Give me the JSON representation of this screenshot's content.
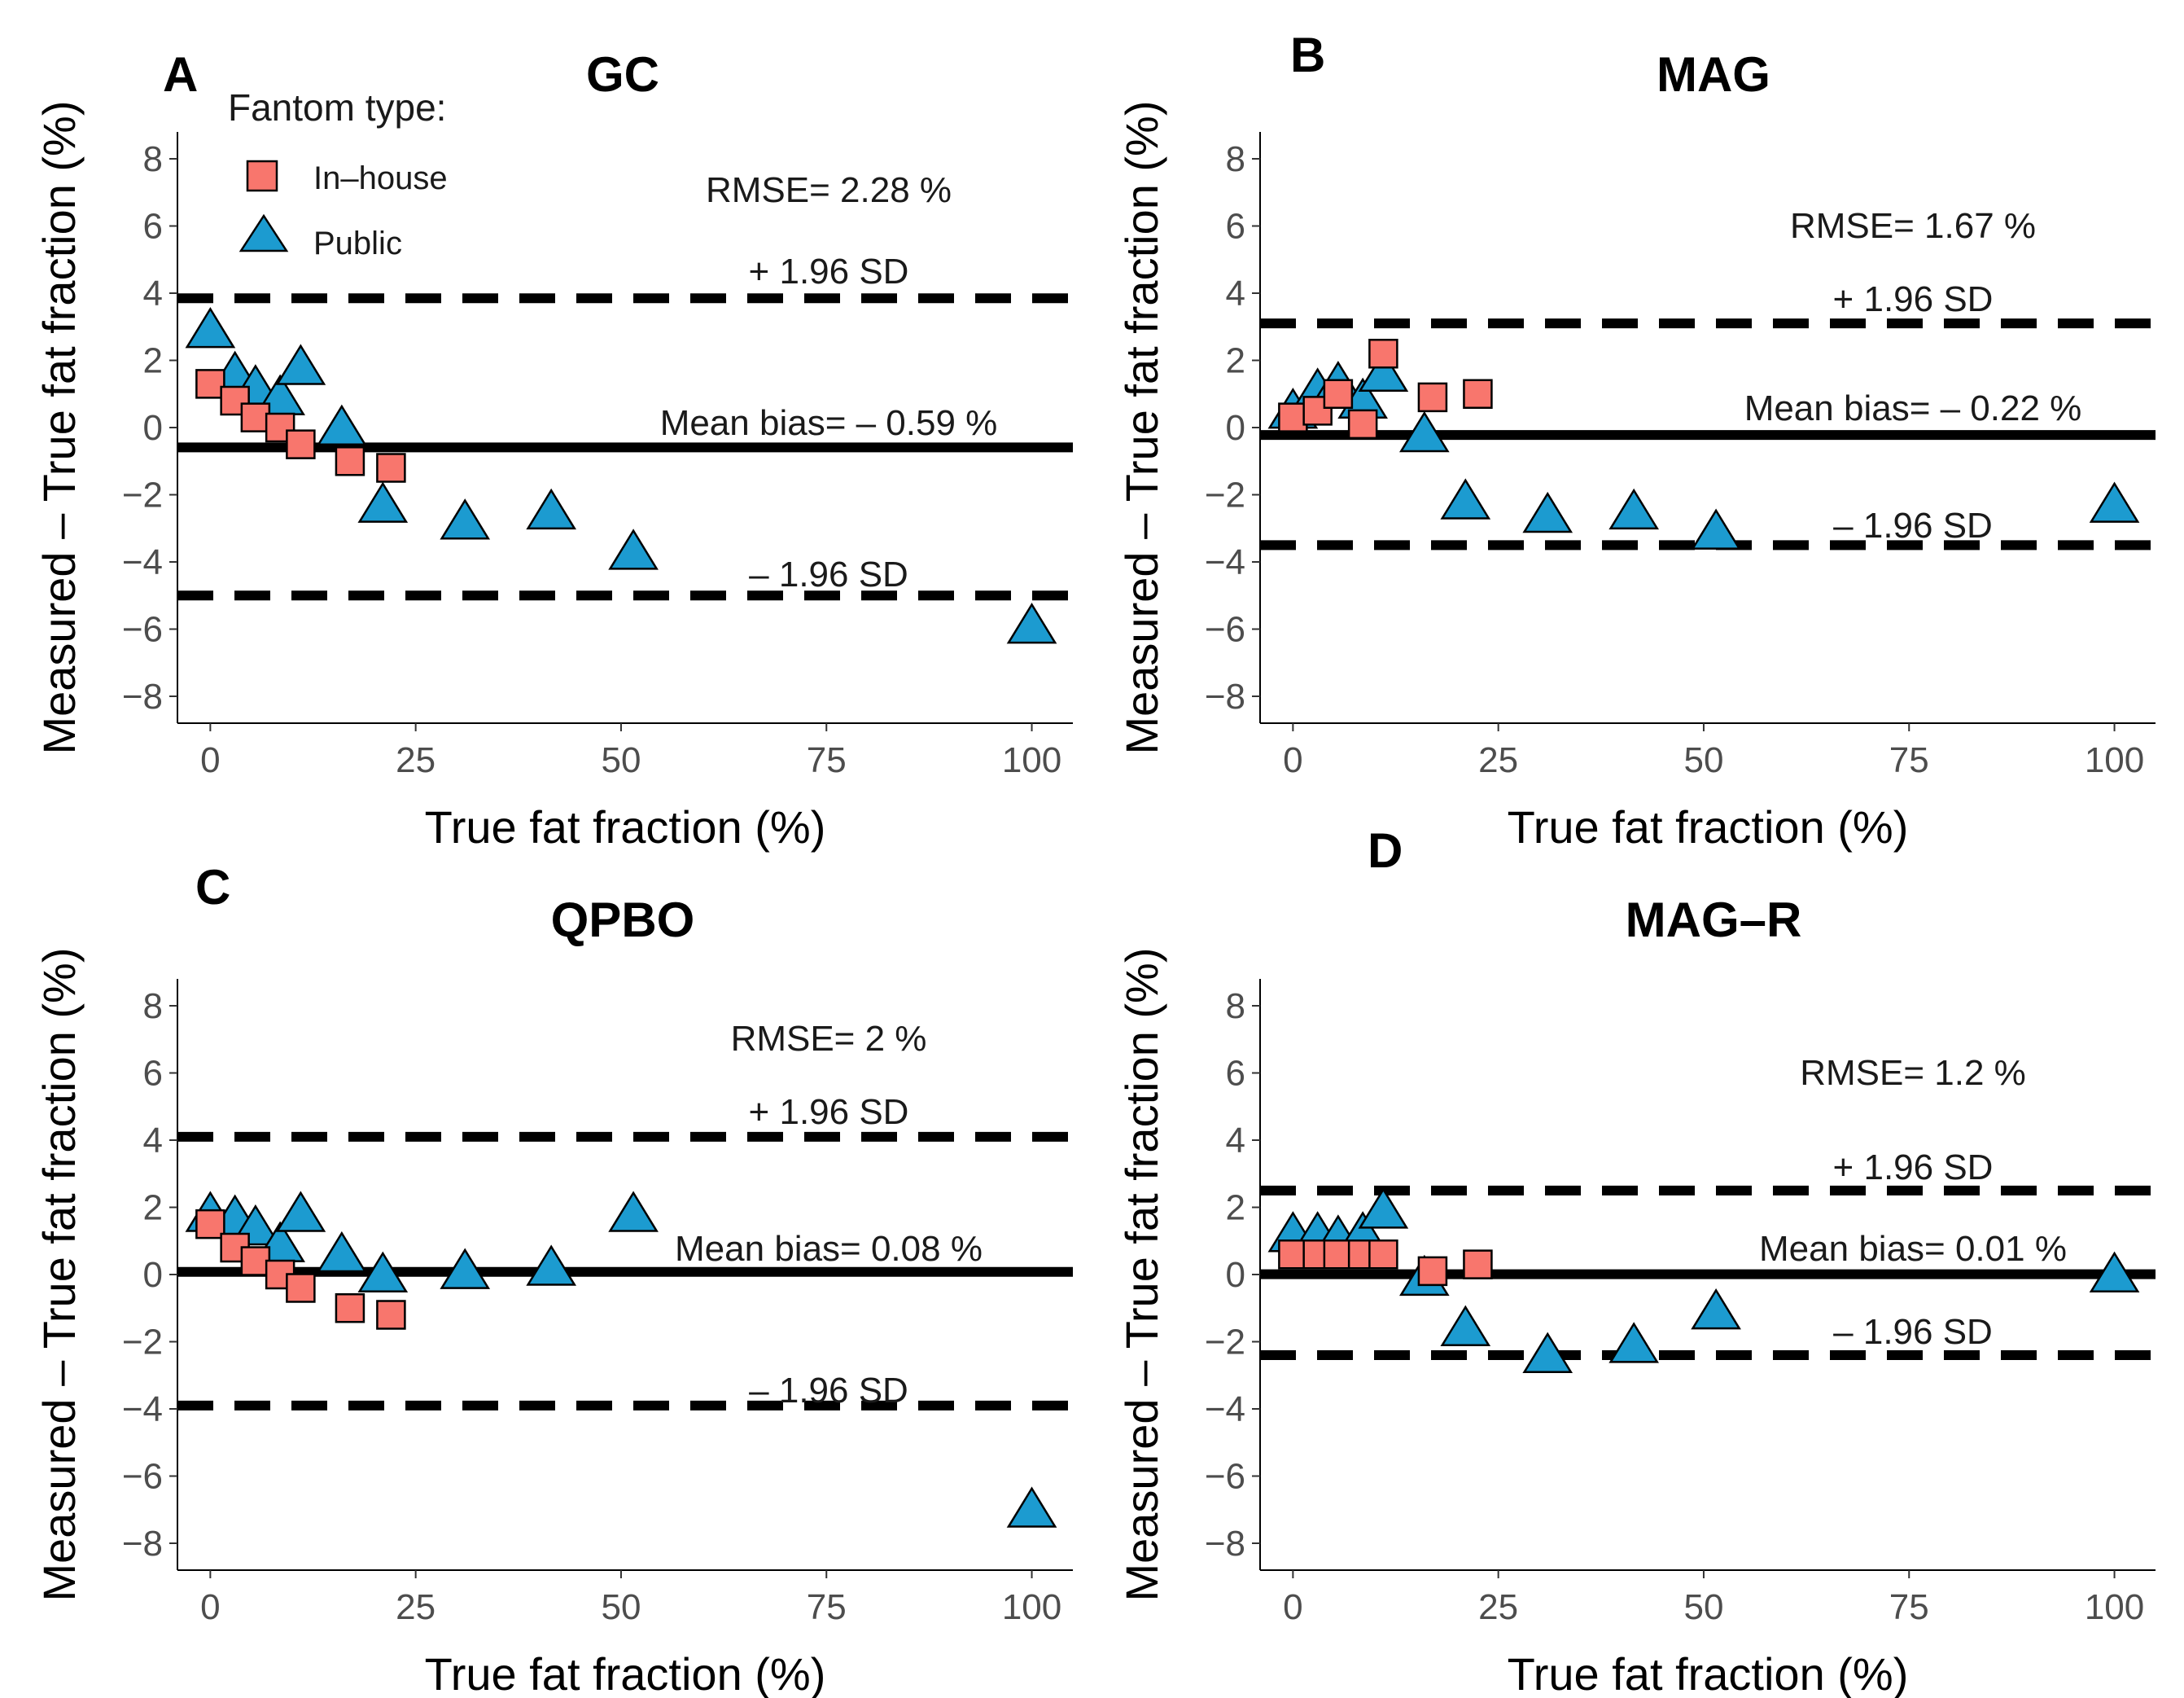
{
  "figure": {
    "legend": {
      "title": "Fantom type:",
      "entries": [
        {
          "label": "In–house",
          "shape": "square",
          "color": "#F8766D"
        },
        {
          "label": "Public",
          "shape": "triangle",
          "color": "#1C9BD0"
        }
      ]
    },
    "colors": {
      "in_house": "#F8766D",
      "public": "#1C9BD0",
      "line": "#000000"
    }
  },
  "chart_data": [
    {
      "panel": "A",
      "title": "GC",
      "type": "scatter",
      "xlabel": "True fat fraction (%)",
      "ylabel": "Measured – True fat fraction (%)",
      "xlim": [
        -4,
        105
      ],
      "ylim": [
        -8.8,
        8.8
      ],
      "xticks": [
        0,
        25,
        50,
        75,
        100
      ],
      "yticks": [
        8,
        6,
        4,
        2,
        0,
        -2,
        -4,
        -6,
        -8
      ],
      "mean_bias": -0.59,
      "upper_loa": 3.85,
      "lower_loa": -5.0,
      "rmse_text": "RMSE= 2.28 %",
      "mean_text": "Mean bias= – 0.59 %",
      "upper_text": "+ 1.96 SD",
      "lower_text": "– 1.96 SD",
      "series": [
        {
          "name": "In–house",
          "points": [
            [
              0,
              1.3
            ],
            [
              3,
              0.8
            ],
            [
              5.5,
              0.3
            ],
            [
              8.5,
              0.0
            ],
            [
              11,
              -0.5
            ],
            [
              17,
              -1.0
            ],
            [
              22,
              -1.2
            ]
          ]
        },
        {
          "name": "Public",
          "points": [
            [
              0,
              2.9
            ],
            [
              3,
              1.6
            ],
            [
              5.5,
              1.2
            ],
            [
              8.5,
              0.9
            ],
            [
              11,
              1.8
            ],
            [
              16,
              0.0
            ],
            [
              21,
              -2.3
            ],
            [
              31,
              -2.8
            ],
            [
              41.5,
              -2.5
            ],
            [
              51.5,
              -3.7
            ],
            [
              100,
              -5.9
            ]
          ]
        }
      ]
    },
    {
      "panel": "B",
      "title": "MAG",
      "type": "scatter",
      "xlabel": "True fat fraction (%)",
      "ylabel": "Measured – True fat fraction (%)",
      "xlim": [
        -4,
        105
      ],
      "ylim": [
        -8.8,
        8.8
      ],
      "xticks": [
        0,
        25,
        50,
        75,
        100
      ],
      "yticks": [
        8,
        6,
        4,
        2,
        0,
        -2,
        -4,
        -6,
        -8
      ],
      "mean_bias": -0.22,
      "upper_loa": 3.1,
      "lower_loa": -3.5,
      "rmse_text": "RMSE= 1.67 %",
      "mean_text": "Mean bias= – 0.22 %",
      "upper_text": "+ 1.96 SD",
      "lower_text": "– 1.96 SD",
      "series": [
        {
          "name": "In–house",
          "points": [
            [
              0,
              0.3
            ],
            [
              3,
              0.5
            ],
            [
              5.5,
              1.0
            ],
            [
              8.5,
              0.1
            ],
            [
              11,
              2.2
            ],
            [
              17,
              0.9
            ],
            [
              22.5,
              1.0
            ]
          ]
        },
        {
          "name": "Public",
          "points": [
            [
              0,
              0.5
            ],
            [
              3,
              1.1
            ],
            [
              5.5,
              1.3
            ],
            [
              8.5,
              0.8
            ],
            [
              11,
              1.6
            ],
            [
              16,
              -0.2
            ],
            [
              21,
              -2.2
            ],
            [
              31,
              -2.6
            ],
            [
              41.5,
              -2.5
            ],
            [
              51.5,
              -3.1
            ],
            [
              100,
              -2.3
            ]
          ]
        }
      ]
    },
    {
      "panel": "C",
      "title": "QPBO",
      "type": "scatter",
      "xlabel": "True fat fraction (%)",
      "ylabel": "Measured – True fat fraction (%)",
      "xlim": [
        -4,
        105
      ],
      "ylim": [
        -8.8,
        8.8
      ],
      "xticks": [
        0,
        25,
        50,
        75,
        100
      ],
      "yticks": [
        8,
        6,
        4,
        2,
        0,
        -2,
        -4,
        -6,
        -8
      ],
      "mean_bias": 0.08,
      "upper_loa": 4.1,
      "lower_loa": -3.9,
      "rmse_text": "RMSE= 2 %",
      "mean_text": "Mean bias= 0.08 %",
      "upper_text": "+ 1.96 SD",
      "lower_text": "– 1.96 SD",
      "series": [
        {
          "name": "In–house",
          "points": [
            [
              0,
              1.5
            ],
            [
              3,
              0.8
            ],
            [
              5.5,
              0.4
            ],
            [
              8.5,
              0.0
            ],
            [
              11,
              -0.4
            ],
            [
              17,
              -1.0
            ],
            [
              22,
              -1.2
            ]
          ]
        },
        {
          "name": "Public",
          "points": [
            [
              0,
              1.8
            ],
            [
              3,
              1.7
            ],
            [
              5.5,
              1.4
            ],
            [
              8.5,
              0.9
            ],
            [
              11,
              1.8
            ],
            [
              16,
              0.6
            ],
            [
              21,
              0.0
            ],
            [
              31,
              0.1
            ],
            [
              41.5,
              0.2
            ],
            [
              51.5,
              1.8
            ],
            [
              100,
              -7.0
            ]
          ]
        }
      ]
    },
    {
      "panel": "D",
      "title": "MAG–R",
      "type": "scatter",
      "xlabel": "True fat fraction (%)",
      "ylabel": "Measured – True fat fraction (%)",
      "xlim": [
        -4,
        105
      ],
      "ylim": [
        -8.8,
        8.8
      ],
      "xticks": [
        0,
        25,
        50,
        75,
        100
      ],
      "yticks": [
        8,
        6,
        4,
        2,
        0,
        -2,
        -4,
        -6,
        -8
      ],
      "mean_bias": 0.01,
      "upper_loa": 2.5,
      "lower_loa": -2.4,
      "rmse_text": "RMSE= 1.2 %",
      "mean_text": "Mean bias= 0.01 %",
      "upper_text": "+ 1.96 SD",
      "lower_text": "– 1.96 SD",
      "series": [
        {
          "name": "In–house",
          "points": [
            [
              0,
              0.6
            ],
            [
              3,
              0.6
            ],
            [
              5.5,
              0.6
            ],
            [
              8.5,
              0.6
            ],
            [
              11,
              0.6
            ],
            [
              17,
              0.1
            ],
            [
              22.5,
              0.3
            ]
          ]
        },
        {
          "name": "Public",
          "points": [
            [
              0,
              1.2
            ],
            [
              3,
              1.2
            ],
            [
              5.5,
              1.1
            ],
            [
              8.5,
              1.2
            ],
            [
              11,
              1.9
            ],
            [
              16,
              -0.1
            ],
            [
              21,
              -1.6
            ],
            [
              31,
              -2.4
            ],
            [
              41.5,
              -2.1
            ],
            [
              51.5,
              -1.1
            ],
            [
              100,
              0.0
            ]
          ]
        }
      ]
    }
  ]
}
